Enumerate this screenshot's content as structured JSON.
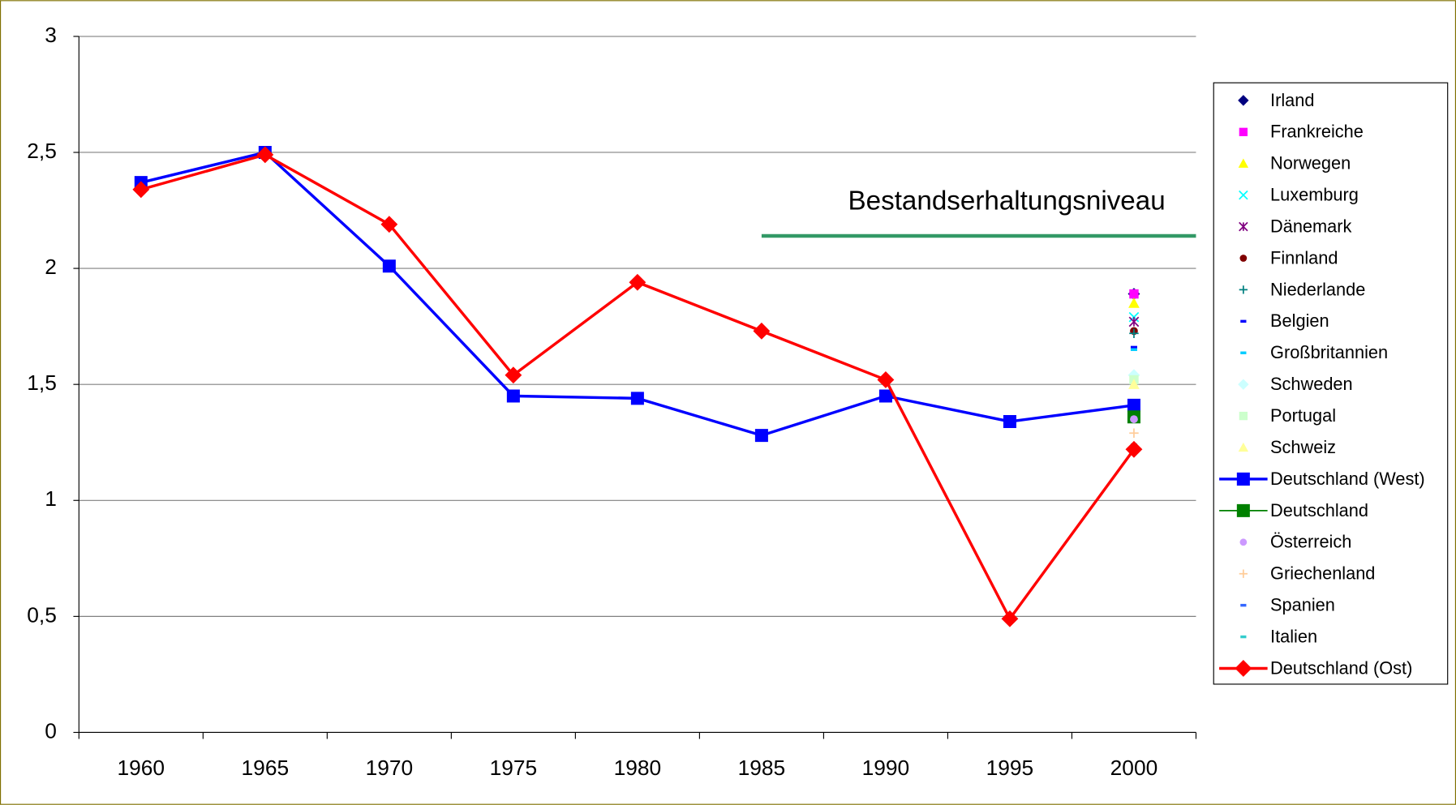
{
  "chart_data": {
    "type": "line",
    "categories": [
      "1960",
      "1965",
      "1970",
      "1975",
      "1980",
      "1985",
      "1990",
      "1995",
      "2000"
    ],
    "ylim": [
      0,
      3
    ],
    "yticks": [
      0,
      {
        "value": 0.5,
        "label": "0,5"
      },
      1,
      {
        "value": 1.5,
        "label": "1,5"
      },
      2,
      {
        "value": 2.5,
        "label": "2,5"
      },
      3
    ],
    "grid": true,
    "legend": "right",
    "reference_line": {
      "label": "Bestandserhaltungsniveau",
      "value": 2.14,
      "color": "#339966"
    },
    "series": [
      {
        "name": "Irland",
        "color": "#000080",
        "marker": "diamond",
        "line": false,
        "values": [
          null,
          null,
          null,
          null,
          null,
          null,
          null,
          null,
          1.89
        ]
      },
      {
        "name": "Frankreiche",
        "color": "#ff00ff",
        "marker": "square",
        "line": false,
        "values": [
          null,
          null,
          null,
          null,
          null,
          null,
          null,
          null,
          1.89
        ]
      },
      {
        "name": "Norwegen",
        "color": "#ffff00",
        "marker": "triangle",
        "line": false,
        "values": [
          null,
          null,
          null,
          null,
          null,
          null,
          null,
          null,
          1.85
        ]
      },
      {
        "name": "Luxemburg",
        "color": "#00ffff",
        "marker": "x",
        "line": false,
        "values": [
          null,
          null,
          null,
          null,
          null,
          null,
          null,
          null,
          1.79
        ]
      },
      {
        "name": "Dänemark",
        "color": "#800080",
        "marker": "asterisk",
        "line": false,
        "values": [
          null,
          null,
          null,
          null,
          null,
          null,
          null,
          null,
          1.77
        ]
      },
      {
        "name": "Finnland",
        "color": "#800000",
        "marker": "circle",
        "line": false,
        "values": [
          null,
          null,
          null,
          null,
          null,
          null,
          null,
          null,
          1.73
        ]
      },
      {
        "name": "Niederlande",
        "color": "#008080",
        "marker": "plus",
        "line": false,
        "values": [
          null,
          null,
          null,
          null,
          null,
          null,
          null,
          null,
          1.72
        ]
      },
      {
        "name": "Belgien",
        "color": "#0000ff",
        "marker": "dash",
        "line": false,
        "values": [
          null,
          null,
          null,
          null,
          null,
          null,
          null,
          null,
          1.66
        ]
      },
      {
        "name": "Großbritannien",
        "color": "#00ccff",
        "marker": "dash",
        "line": false,
        "values": [
          null,
          null,
          null,
          null,
          null,
          null,
          null,
          null,
          1.65
        ]
      },
      {
        "name": "Schweden",
        "color": "#ccffff",
        "marker": "diamond",
        "line": false,
        "values": [
          null,
          null,
          null,
          null,
          null,
          null,
          null,
          null,
          1.54
        ]
      },
      {
        "name": "Portugal",
        "color": "#ccffcc",
        "marker": "square",
        "line": false,
        "values": [
          null,
          null,
          null,
          null,
          null,
          null,
          null,
          null,
          1.52
        ]
      },
      {
        "name": "Schweiz",
        "color": "#ffff99",
        "marker": "triangle",
        "line": false,
        "values": [
          null,
          null,
          null,
          null,
          null,
          null,
          null,
          null,
          1.5
        ]
      },
      {
        "name": "Deutschland (West)",
        "color": "#0000ff",
        "marker": "square",
        "line": true,
        "values": [
          2.37,
          2.5,
          2.01,
          1.45,
          1.44,
          1.28,
          1.45,
          1.34,
          1.41
        ]
      },
      {
        "name": "Deutschland",
        "color": "#008000",
        "marker": "square",
        "line": true,
        "values": [
          null,
          null,
          null,
          null,
          null,
          null,
          null,
          null,
          1.36
        ]
      },
      {
        "name": "Österreich",
        "color": "#cc99ff",
        "marker": "circle",
        "line": false,
        "values": [
          null,
          null,
          null,
          null,
          null,
          null,
          null,
          null,
          1.35
        ]
      },
      {
        "name": "Griechenland",
        "color": "#ffcc99",
        "marker": "plus",
        "line": false,
        "values": [
          null,
          null,
          null,
          null,
          null,
          null,
          null,
          null,
          1.29
        ]
      },
      {
        "name": "Spanien",
        "color": "#3366ff",
        "marker": "dash",
        "line": false,
        "values": [
          null,
          null,
          null,
          null,
          null,
          null,
          null,
          null,
          1.22
        ]
      },
      {
        "name": "Italien",
        "color": "#33cccc",
        "marker": "dash",
        "line": false,
        "values": [
          null,
          null,
          null,
          null,
          null,
          null,
          null,
          null,
          1.24
        ]
      },
      {
        "name": "Deutschland (Ost)",
        "color": "#ff0000",
        "marker": "diamond",
        "line": true,
        "values": [
          2.34,
          2.49,
          2.19,
          1.54,
          1.94,
          1.73,
          1.52,
          0.49,
          1.22
        ]
      }
    ]
  }
}
